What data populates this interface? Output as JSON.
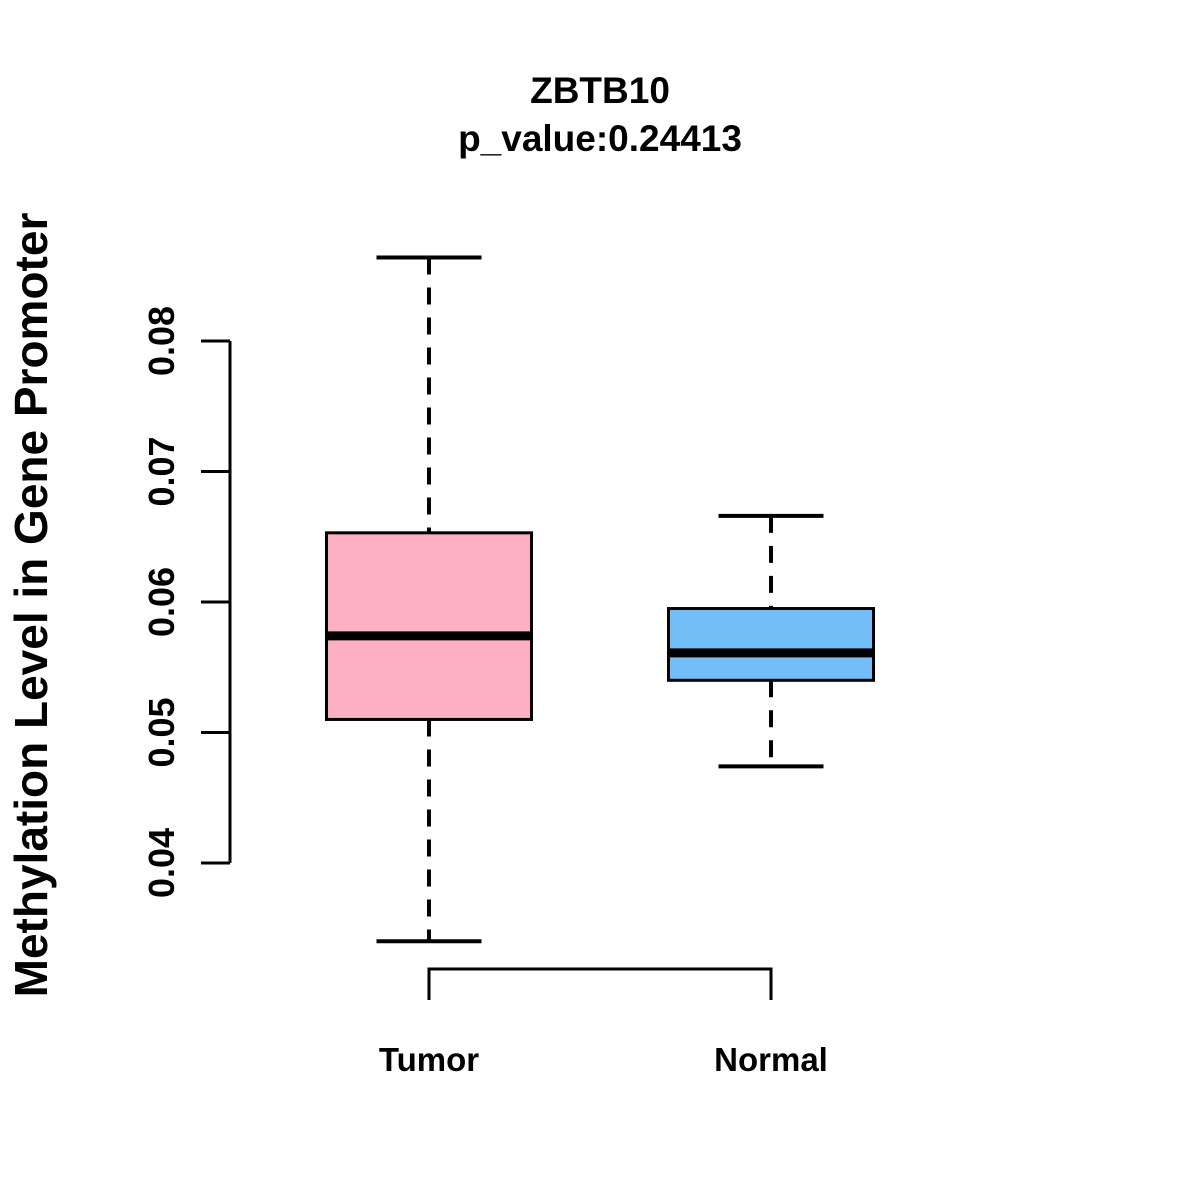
{
  "title": "ZBTB10",
  "subtitle": "p_value:0.24413",
  "chart_data": {
    "type": "boxplot",
    "title": "ZBTB10",
    "subtitle": "p_value:0.24413",
    "xlabel": "",
    "ylabel": "Methylation Level in Gene Promoter",
    "categories": [
      "Tumor",
      "Normal"
    ],
    "y_ticks": [
      0.04,
      0.05,
      0.06,
      0.07,
      0.08
    ],
    "y_tick_labels": [
      "0.04",
      "0.05",
      "0.06",
      "0.07",
      "0.08"
    ],
    "ylim": [
      0.032,
      0.088
    ],
    "grid": false,
    "legend": "none",
    "whisker_style": "dashed",
    "series": [
      {
        "name": "Tumor",
        "color": "#FCB0C2",
        "lower_whisker": 0.034,
        "q1": 0.051,
        "median": 0.0574,
        "q3": 0.0653,
        "upper_whisker": 0.0864
      },
      {
        "name": "Normal",
        "color": "#74BEF7",
        "lower_whisker": 0.0474,
        "q1": 0.054,
        "median": 0.0561,
        "q3": 0.0595,
        "upper_whisker": 0.0666
      }
    ],
    "colors": {
      "line": "#000000",
      "background": "#FFFFFF",
      "tumor_fill": "#FCB0C2",
      "normal_fill": "#74BEF7"
    }
  }
}
